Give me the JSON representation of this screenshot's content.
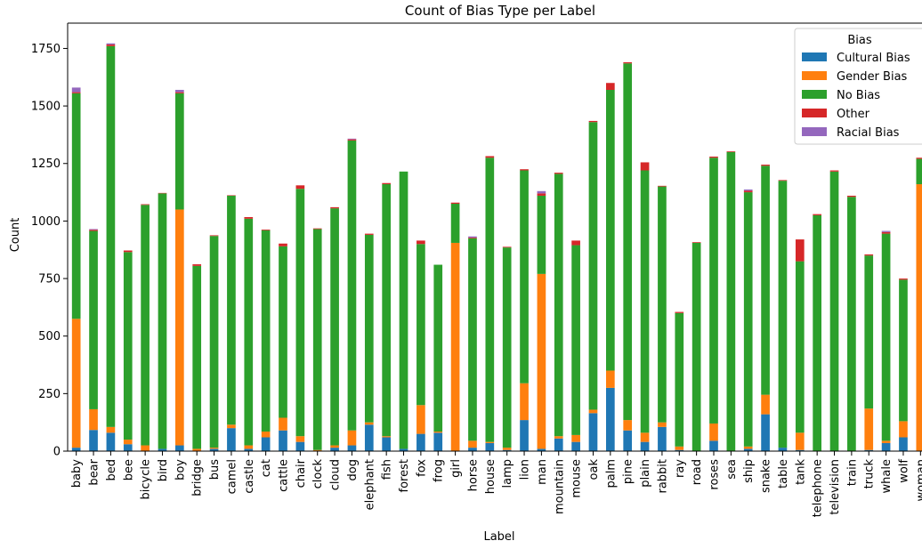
{
  "chart_data": {
    "type": "bar",
    "stacked": true,
    "title": "Count of Bias Type per Label",
    "xlabel": "Label",
    "ylabel": "Count",
    "ylim": [
      0,
      1860
    ],
    "yticks": [
      0,
      250,
      500,
      750,
      1000,
      1250,
      1500,
      1750
    ],
    "yticks_text": [
      "0",
      "250",
      "500",
      "750",
      "1000",
      "1250",
      "1500",
      "1750"
    ],
    "grid": false,
    "legend": {
      "title": "Bias",
      "placement": "top-right"
    },
    "categories": [
      "baby",
      "bear",
      "bed",
      "bee",
      "bicycle",
      "bird",
      "boy",
      "bridge",
      "bus",
      "camel",
      "castle",
      "cat",
      "cattle",
      "chair",
      "clock",
      "cloud",
      "dog",
      "elephant",
      "fish",
      "forest",
      "fox",
      "frog",
      "girl",
      "horse",
      "house",
      "lamp",
      "lion",
      "man",
      "mountain",
      "mouse",
      "oak",
      "palm",
      "pine",
      "plain",
      "rabbit",
      "ray",
      "road",
      "roses",
      "sea",
      "ship",
      "snake",
      "table",
      "tank",
      "telephone",
      "television",
      "train",
      "truck",
      "whale",
      "wolf",
      "woman"
    ],
    "series": [
      {
        "name": "Cultural Bias",
        "color": "#1f77b4",
        "values": [
          15,
          92,
          80,
          30,
          0,
          10,
          25,
          0,
          10,
          100,
          10,
          60,
          90,
          40,
          0,
          15,
          25,
          115,
          60,
          10,
          75,
          80,
          0,
          15,
          35,
          5,
          135,
          10,
          55,
          40,
          165,
          275,
          90,
          40,
          105,
          5,
          0,
          45,
          0,
          10,
          160,
          15,
          5,
          0,
          0,
          0,
          5,
          35,
          60,
          0
        ]
      },
      {
        "name": "Gender Bias",
        "color": "#ff7f0e",
        "values": [
          560,
          90,
          25,
          20,
          25,
          0,
          1025,
          10,
          5,
          15,
          15,
          25,
          55,
          25,
          5,
          10,
          65,
          10,
          5,
          0,
          125,
          5,
          905,
          30,
          5,
          10,
          160,
          760,
          10,
          30,
          15,
          75,
          45,
          40,
          20,
          15,
          0,
          75,
          0,
          10,
          85,
          0,
          75,
          0,
          0,
          0,
          180,
          10,
          70,
          1160
        ]
      },
      {
        "name": "No Bias",
        "color": "#2ca02c",
        "values": [
          980,
          775,
          1655,
          815,
          1045,
          1110,
          505,
          795,
          920,
          995,
          985,
          875,
          745,
          1075,
          960,
          1030,
          1260,
          815,
          1095,
          1205,
          700,
          725,
          170,
          880,
          1235,
          870,
          925,
          340,
          1140,
          825,
          1250,
          1220,
          1550,
          1140,
          1025,
          580,
          905,
          1155,
          1300,
          1105,
          995,
          1160,
          745,
          1025,
          1215,
          1105,
          665,
          900,
          615,
          110
        ]
      },
      {
        "name": "Other",
        "color": "#d62728",
        "values": [
          5,
          5,
          7,
          7,
          3,
          2,
          5,
          7,
          3,
          2,
          7,
          3,
          12,
          15,
          3,
          5,
          5,
          5,
          5,
          0,
          15,
          0,
          5,
          3,
          7,
          3,
          5,
          10,
          5,
          20,
          5,
          30,
          5,
          35,
          3,
          5,
          3,
          5,
          3,
          7,
          5,
          3,
          95,
          5,
          5,
          5,
          5,
          7,
          5,
          5
        ]
      },
      {
        "name": "Racial Bias",
        "color": "#9467bd",
        "values": [
          20,
          3,
          5,
          0,
          0,
          0,
          10,
          0,
          0,
          0,
          0,
          0,
          0,
          0,
          0,
          0,
          3,
          0,
          0,
          0,
          0,
          0,
          0,
          5,
          0,
          0,
          0,
          10,
          0,
          0,
          0,
          0,
          0,
          0,
          0,
          0,
          0,
          0,
          0,
          5,
          0,
          0,
          0,
          0,
          0,
          0,
          0,
          5,
          0,
          0
        ]
      }
    ]
  }
}
